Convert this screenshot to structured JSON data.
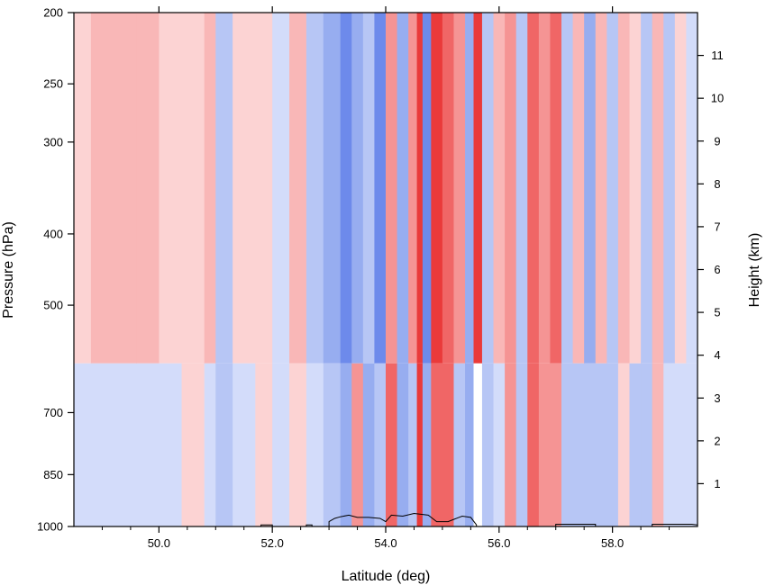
{
  "chart_data": {
    "type": "heatmap",
    "title": "",
    "xlabel": "Latitude (deg)",
    "ylabel": "Pressure (hPa)",
    "y2label": "Height (km)",
    "xlim": [
      48.5,
      59.5
    ],
    "ylim": [
      1000,
      200
    ],
    "y2lim": [
      0,
      12
    ],
    "y_scale": "log",
    "grid": false,
    "legend": "none",
    "x_ticks": [
      50.0,
      52.0,
      54.0,
      56.0,
      58.0
    ],
    "x_tick_labels": [
      "50.0",
      "52.0",
      "54.0",
      "56.0",
      "58.0"
    ],
    "y_ticks": [
      1000,
      850,
      700,
      500,
      400,
      300,
      250,
      200
    ],
    "y_tick_labels": [
      "1000",
      "850",
      "700",
      "500",
      "400",
      "300",
      "250",
      "200"
    ],
    "y2_ticks": [
      1,
      2,
      3,
      4,
      5,
      6,
      7,
      8,
      9,
      10,
      11
    ],
    "y2_tick_labels": [
      "1",
      "2",
      "3",
      "4",
      "5",
      "6",
      "7",
      "8",
      "9",
      "10",
      "11"
    ],
    "colormap": {
      "negative": [
        "#d3dcfa",
        "#b7c6f5",
        "#97adf0",
        "#6d8aeb",
        "#3f66e6"
      ],
      "positive": [
        "#fcd3d3",
        "#f9b7b7",
        "#f59494",
        "#f06666",
        "#ea3a3a"
      ],
      "missing": "#ffffff",
      "blank_high": "#eeeeee"
    },
    "columns": [
      {
        "lat": 48.5,
        "up": 1,
        "low": -1
      },
      {
        "lat": 48.8,
        "up": 2,
        "low": -1
      },
      {
        "lat": 49.2,
        "up": 2,
        "low": -1
      },
      {
        "lat": 49.6,
        "up": 2,
        "low": -1
      },
      {
        "lat": 50.0,
        "up": 1,
        "low": -1
      },
      {
        "lat": 50.4,
        "up": 1,
        "low": 1
      },
      {
        "lat": 50.8,
        "up": 2,
        "low": -1
      },
      {
        "lat": 51.0,
        "up": -2,
        "low": -2
      },
      {
        "lat": 51.3,
        "up": 1,
        "low": -1
      },
      {
        "lat": 51.7,
        "up": 1,
        "low": 1
      },
      {
        "lat": 52.0,
        "up": -1,
        "low": -1
      },
      {
        "lat": 52.3,
        "up": 2,
        "low": 1
      },
      {
        "lat": 52.6,
        "up": -2,
        "low": -1
      },
      {
        "lat": 52.9,
        "up": -3,
        "low": -2
      },
      {
        "lat": 53.2,
        "up": -4,
        "low": -3
      },
      {
        "lat": 53.4,
        "up": -3,
        "low": 3
      },
      {
        "lat": 53.6,
        "up": -2,
        "low": -3
      },
      {
        "lat": 53.8,
        "up": -4,
        "low": -2
      },
      {
        "lat": 54.0,
        "up": 3,
        "low": 4
      },
      {
        "lat": 54.2,
        "up": -3,
        "low": -3
      },
      {
        "lat": 54.4,
        "up": 3,
        "low": -2
      },
      {
        "lat": 54.55,
        "up": 5,
        "low": 5
      },
      {
        "lat": 54.65,
        "up": -4,
        "low": -3
      },
      {
        "lat": 54.8,
        "up": 5,
        "low": 4
      },
      {
        "lat": 55.0,
        "up": 4,
        "low": 4
      },
      {
        "lat": 55.2,
        "up": 3,
        "low": -2
      },
      {
        "lat": 55.4,
        "up": -3,
        "low": -3
      },
      {
        "lat": 55.55,
        "up": 5,
        "low": 0
      },
      {
        "lat": 55.7,
        "up": -2,
        "low": -2
      },
      {
        "lat": 55.9,
        "up": 2,
        "low": -1
      },
      {
        "lat": 56.1,
        "up": 3,
        "low": 3
      },
      {
        "lat": 56.3,
        "up": -2,
        "low": -2
      },
      {
        "lat": 56.5,
        "up": 4,
        "low": 4
      },
      {
        "lat": 56.7,
        "up": 3,
        "low": 3
      },
      {
        "lat": 56.9,
        "up": 4,
        "low": 3
      },
      {
        "lat": 57.1,
        "up": -2,
        "low": -2
      },
      {
        "lat": 57.3,
        "up": 2,
        "low": -2
      },
      {
        "lat": 57.5,
        "up": -3,
        "low": -2
      },
      {
        "lat": 57.7,
        "up": 2,
        "low": -2
      },
      {
        "lat": 57.9,
        "up": -2,
        "low": -2
      },
      {
        "lat": 58.1,
        "up": 2,
        "low": 1
      },
      {
        "lat": 58.3,
        "up": 1,
        "low": -2
      },
      {
        "lat": 58.5,
        "up": -2,
        "low": -2
      },
      {
        "lat": 58.7,
        "up": 2,
        "low": 2
      },
      {
        "lat": 58.9,
        "up": -2,
        "low": -1
      },
      {
        "lat": 59.1,
        "up": 1,
        "low": -1
      },
      {
        "lat": 59.3,
        "up": -1,
        "low": -1
      }
    ],
    "terrain_outline": [
      [
        48.5,
        1000
      ],
      [
        51.8,
        1000
      ],
      [
        51.8,
        995
      ],
      [
        52.0,
        995
      ],
      [
        52.0,
        1000
      ],
      [
        52.6,
        1000
      ],
      [
        52.6,
        995
      ],
      [
        52.7,
        995
      ],
      [
        52.7,
        1000
      ],
      [
        53.0,
        1000
      ],
      [
        53.0,
        985
      ],
      [
        53.1,
        975
      ],
      [
        53.2,
        970
      ],
      [
        53.35,
        965
      ],
      [
        53.5,
        972
      ],
      [
        53.7,
        972
      ],
      [
        53.9,
        975
      ],
      [
        54.0,
        985
      ],
      [
        54.1,
        965
      ],
      [
        54.3,
        968
      ],
      [
        54.5,
        960
      ],
      [
        54.75,
        965
      ],
      [
        54.9,
        985
      ],
      [
        55.1,
        985
      ],
      [
        55.2,
        978
      ],
      [
        55.35,
        968
      ],
      [
        55.5,
        972
      ],
      [
        55.6,
        995
      ],
      [
        55.6,
        1000
      ],
      [
        57.0,
        1000
      ],
      [
        57.0,
        993
      ],
      [
        57.7,
        993
      ],
      [
        57.7,
        1000
      ],
      [
        58.7,
        1000
      ],
      [
        58.7,
        993
      ],
      [
        59.4,
        993
      ],
      [
        59.5,
        995
      ]
    ]
  }
}
